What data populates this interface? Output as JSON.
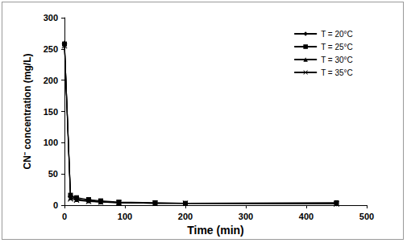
{
  "chart_data": {
    "type": "line",
    "x_label": "Time (min)",
    "y_label": "CN⁻ concentration (mg/L)",
    "x": [
      0,
      10,
      20,
      40,
      60,
      90,
      150,
      200,
      450
    ],
    "series": [
      {
        "name": "T = 20°C",
        "color": "#000000",
        "marker": "diamond",
        "values": [
          258,
          15,
          10,
          8,
          6,
          4,
          3,
          3,
          2
        ]
      },
      {
        "name": "T = 25°C",
        "color": "#000000",
        "marker": "square",
        "values": [
          258,
          16,
          12,
          9,
          7,
          5,
          4,
          3,
          4
        ]
      },
      {
        "name": "T = 30°C",
        "color": "#000000",
        "marker": "triangle",
        "values": [
          260,
          12,
          9,
          7,
          5,
          4,
          3,
          3,
          3
        ]
      },
      {
        "name": "T = 35°C",
        "color": "#000000",
        "marker": "x",
        "values": [
          255,
          10,
          8,
          6,
          5,
          4,
          3,
          3,
          2
        ]
      }
    ],
    "xlim": [
      0,
      500
    ],
    "xticks": [
      0,
      100,
      200,
      300,
      400,
      500
    ],
    "ylim": [
      0,
      300
    ],
    "yticks": [
      0,
      50,
      100,
      150,
      200,
      250,
      300
    ],
    "grid": false,
    "legend": "upper right"
  }
}
